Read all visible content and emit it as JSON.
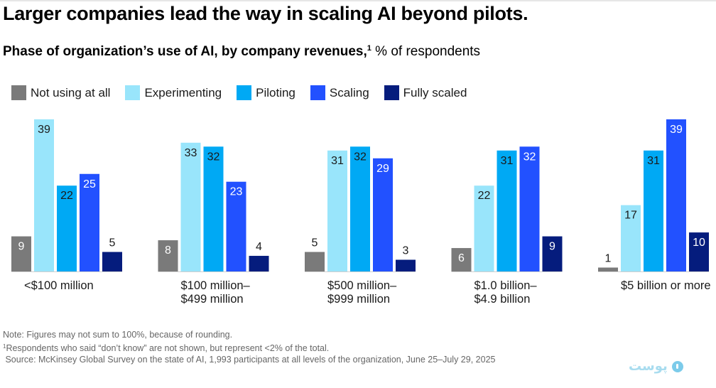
{
  "title": "Larger companies lead the way in scaling AI beyond pilots.",
  "subtitle": {
    "bold": "Phase of organization’s use of AI, by company revenues,",
    "footnote_marker": "1",
    "regular": " % of respondents"
  },
  "chart_data": {
    "type": "bar",
    "title": "Phase of organization’s use of AI, by company revenues",
    "ylabel": "% of respondents",
    "xlabel": "",
    "ylim": [
      0,
      40
    ],
    "grid": false,
    "legend_position": "top-left",
    "categories": [
      [
        "<$100 million"
      ],
      [
        "$100 million–",
        "$499 million"
      ],
      [
        "$500 million–",
        "$999 million"
      ],
      [
        "$1.0 billion–",
        "$4.9 billion"
      ],
      [
        "$5 billion or more"
      ]
    ],
    "series": [
      {
        "name": "Not using at all",
        "color": "#7a7a7a",
        "label_color": "#ffffff",
        "values": [
          9,
          8,
          5,
          6,
          1
        ]
      },
      {
        "name": "Experimenting",
        "color": "#99e5fb",
        "label_color": "#1a1a1a",
        "values": [
          39,
          33,
          31,
          22,
          17
        ]
      },
      {
        "name": "Piloting",
        "color": "#00a9f4",
        "label_color": "#1a1a1a",
        "values": [
          22,
          32,
          32,
          31,
          31
        ]
      },
      {
        "name": "Scaling",
        "color": "#2251ff",
        "label_color": "#ffffff",
        "values": [
          25,
          23,
          29,
          32,
          39
        ]
      },
      {
        "name": "Fully scaled",
        "color": "#051c7d",
        "label_color": "#ffffff",
        "values": [
          5,
          4,
          3,
          9,
          10
        ]
      }
    ]
  },
  "notes": {
    "note": "Note: Figures may not sum to 100%, because of rounding.",
    "footnote_marker": "1",
    "footnote": "Respondents who said “don’t know” are not shown, but represent <2% of the total.",
    "source": " Source: McKinsey Global Survey on the state of AI, 1,993 participants at all levels of the organization, June 25–July 29, 2025"
  },
  "watermark": {
    "text": "پوست",
    "icon": "logo-circle-icon"
  }
}
